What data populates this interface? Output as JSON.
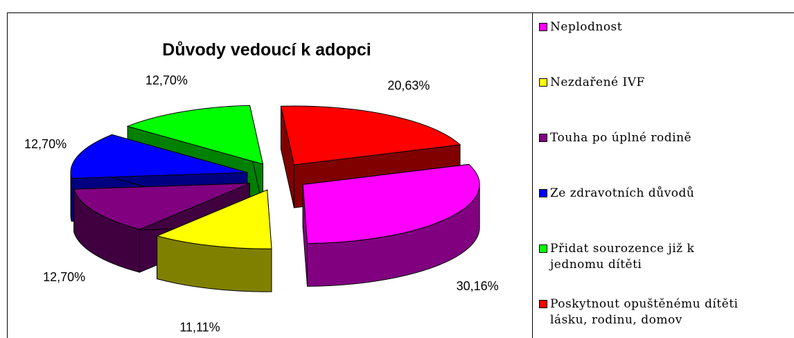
{
  "chart_data": {
    "type": "pie3d",
    "title": "Důvody vedoucí k adopci",
    "categories": [
      "Neplodnost",
      "Nezdařené IVF",
      "Touha po úplné rodině",
      "Ze zdravotních důvodů",
      "Přidat sourozence již k jednomu dítěti",
      "Poskytnout opuštěnému dítěti lásku, rodinu, domov"
    ],
    "values": [
      30.16,
      11.11,
      12.7,
      12.7,
      12.7,
      20.63
    ],
    "value_labels": [
      "30,16%",
      "11,11%",
      "12,70%",
      "12,70%",
      "12,70%",
      "20,63%"
    ],
    "colors": [
      "#ff00ff",
      "#ffff00",
      "#800080",
      "#0000ff",
      "#00ff00",
      "#ff0000"
    ],
    "legend": "right"
  }
}
